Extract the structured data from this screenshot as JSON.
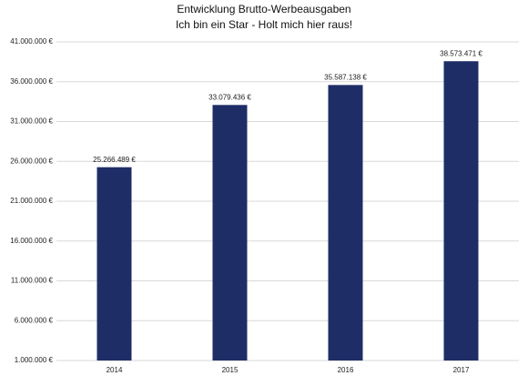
{
  "chart_data": {
    "type": "bar",
    "title": "Entwicklung Brutto-Werbeausgaben",
    "subtitle": "Ich bin ein Star - Holt mich hier raus!",
    "categories": [
      "2014",
      "2015",
      "2016",
      "2017"
    ],
    "values": [
      25266489,
      33079436,
      35587138,
      38573471
    ],
    "value_labels": [
      "25.266.489 €",
      "33.079.436 €",
      "35.587.138 €",
      "38.573.471 €"
    ],
    "color": "#1f2d66",
    "ylim": [
      1000000,
      41000000
    ],
    "yticks": [
      {
        "value": 1000000,
        "label": "1.000.000 €"
      },
      {
        "value": 6000000,
        "label": "6.000.000 €"
      },
      {
        "value": 11000000,
        "label": "11.000.000 €"
      },
      {
        "value": 16000000,
        "label": "16.000.000 €"
      },
      {
        "value": 21000000,
        "label": "21.000.000 €"
      },
      {
        "value": 26000000,
        "label": "26.000.000 €"
      },
      {
        "value": 31000000,
        "label": "31.000.000 €"
      },
      {
        "value": 36000000,
        "label": "36.000.000 €"
      },
      {
        "value": 41000000,
        "label": "41.000.000 €"
      }
    ],
    "grid": true
  }
}
